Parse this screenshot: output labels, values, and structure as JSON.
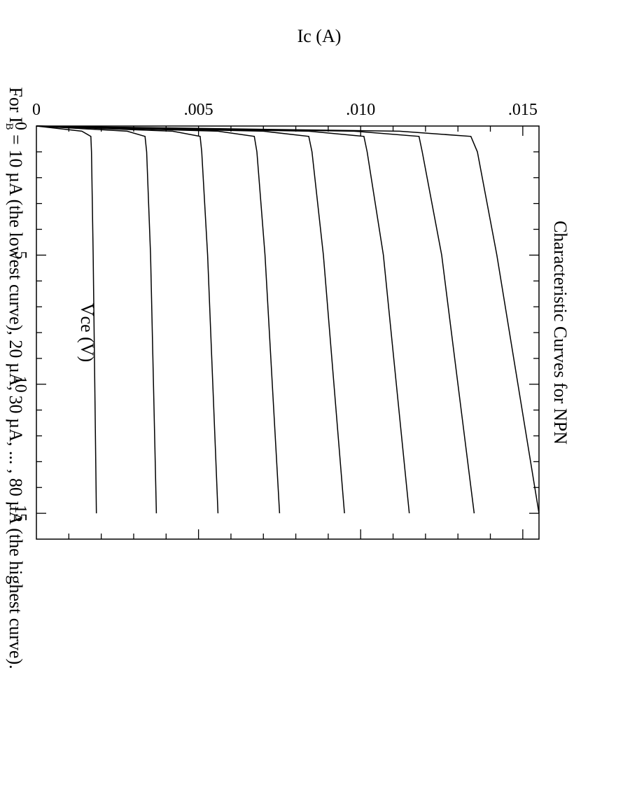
{
  "chart_data": {
    "type": "line",
    "title": "Characteristic Curves for NPN",
    "xlabel": "Vce (V)",
    "ylabel": "Ic (A)",
    "xlim": [
      0,
      16
    ],
    "ylim": [
      0,
      0.0155
    ],
    "x_ticks": [
      {
        "value": 0,
        "label": "0"
      },
      {
        "value": 5,
        "label": "5"
      },
      {
        "value": 10,
        "label": "10"
      },
      {
        "value": 15,
        "label": "15"
      }
    ],
    "y_ticks": [
      {
        "value": 0,
        "label": "0"
      },
      {
        "value": 0.005,
        "label": ".005"
      },
      {
        "value": 0.01,
        "label": ".010"
      },
      {
        "value": 0.015,
        "label": ".015"
      }
    ],
    "grid": false,
    "orientation": "rotated 90° clockwise",
    "series": [
      {
        "values": [
          [
            0,
            0
          ],
          [
            0.2,
            0.0014
          ],
          [
            0.4,
            0.00168
          ],
          [
            1,
            0.0017
          ],
          [
            5,
            0.00175
          ],
          [
            15,
            0.00185
          ]
        ]
      },
      {
        "values": [
          [
            0,
            0
          ],
          [
            0.2,
            0.0028
          ],
          [
            0.4,
            0.00335
          ],
          [
            1,
            0.0034
          ],
          [
            5,
            0.00352
          ],
          [
            15,
            0.0037
          ]
        ]
      },
      {
        "values": [
          [
            0,
            0
          ],
          [
            0.2,
            0.0042
          ],
          [
            0.4,
            0.00505
          ],
          [
            1,
            0.0051
          ],
          [
            5,
            0.00528
          ],
          [
            15,
            0.0056
          ]
        ]
      },
      {
        "values": [
          [
            0,
            0
          ],
          [
            0.2,
            0.0056
          ],
          [
            0.4,
            0.00672
          ],
          [
            1,
            0.0068
          ],
          [
            5,
            0.00705
          ],
          [
            15,
            0.0075
          ]
        ]
      },
      {
        "values": [
          [
            0,
            0
          ],
          [
            0.2,
            0.007
          ],
          [
            0.4,
            0.0084
          ],
          [
            1,
            0.0085
          ],
          [
            5,
            0.00885
          ],
          [
            15,
            0.0095
          ]
        ]
      },
      {
        "values": [
          [
            0,
            0
          ],
          [
            0.2,
            0.0084
          ],
          [
            0.4,
            0.0101
          ],
          [
            1,
            0.0102
          ],
          [
            5,
            0.0107
          ],
          [
            15,
            0.0115
          ]
        ]
      },
      {
        "values": [
          [
            0,
            0
          ],
          [
            0.2,
            0.0098
          ],
          [
            0.4,
            0.0118
          ],
          [
            1,
            0.0119
          ],
          [
            5,
            0.0125
          ],
          [
            15,
            0.0135
          ]
        ]
      },
      {
        "values": [
          [
            0,
            0
          ],
          [
            0.2,
            0.0112
          ],
          [
            0.4,
            0.0134
          ],
          [
            1,
            0.0136
          ],
          [
            5,
            0.0142
          ],
          [
            15,
            0.0155
          ]
        ]
      }
    ]
  },
  "caption": {
    "text": "For I",
    "subscript": "B",
    "rest": " = 10 µA (the lowest curve), 20 µA, 30 µA, ... , 80 µA (the highest curve)."
  }
}
